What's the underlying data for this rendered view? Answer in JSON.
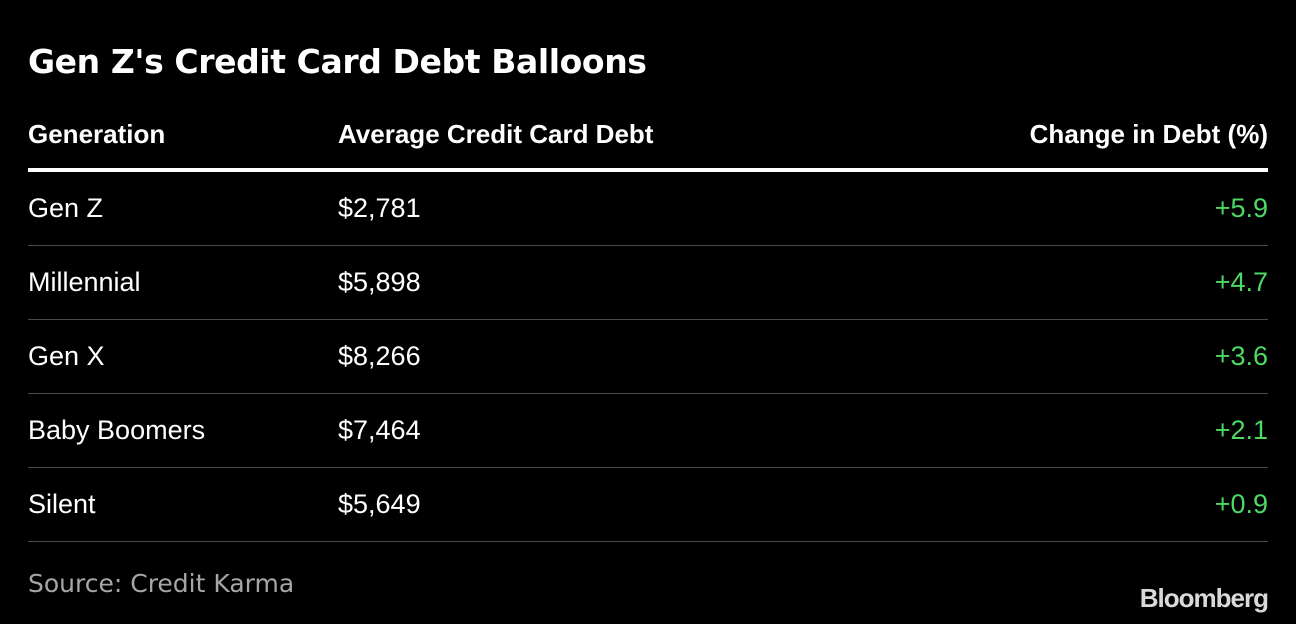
{
  "chart_data": {
    "type": "table",
    "title": "Gen Z's Credit Card Debt Balloons",
    "columns": [
      "Generation",
      "Average Credit Card Debt",
      "Change in Debt (%)"
    ],
    "rows": [
      {
        "generation": "Gen Z",
        "debt": "$2,781",
        "change": "+5.9"
      },
      {
        "generation": "Millennial",
        "debt": "$5,898",
        "change": "+4.7"
      },
      {
        "generation": "Gen X",
        "debt": "$8,266",
        "change": "+3.6"
      },
      {
        "generation": "Baby Boomers",
        "debt": "$7,464",
        "change": "+2.1"
      },
      {
        "generation": "Silent",
        "debt": "$5,649",
        "change": "+0.9"
      }
    ],
    "source": "Source: Credit Karma"
  },
  "brand": "Bloomberg",
  "colors": {
    "background": "#000000",
    "text": "#ffffff",
    "positive": "#4cd964",
    "muted": "#a6a6a6",
    "divider": "#4a4a4a"
  }
}
